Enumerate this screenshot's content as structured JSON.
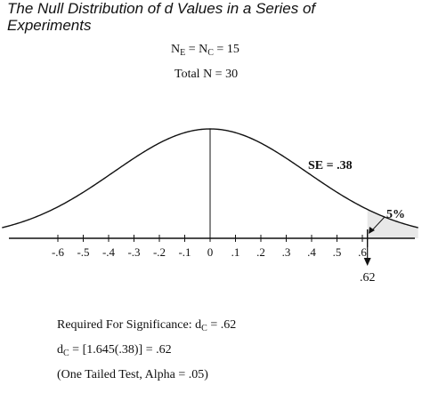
{
  "header": {
    "title_line1": "The Null Distribution of d Values in a Series of",
    "title_line2": "Experiments",
    "sample_eq_prefix": "N",
    "sample_eq_sub1": "E",
    "sample_eq_mid": " = N",
    "sample_eq_sub2": "C",
    "sample_eq_suffix": " = 15",
    "total_n": "Total N = 30"
  },
  "chart_data": {
    "type": "area",
    "title": "The Null Distribution of d Values in a Series of Experiments",
    "distribution": "normal",
    "mean": 0,
    "standard_error": 0.38,
    "x_ticks": [
      -0.6,
      -0.5,
      -0.4,
      -0.3,
      -0.2,
      -0.1,
      0,
      0.1,
      0.2,
      0.3,
      0.4,
      0.5,
      0.6
    ],
    "x_tick_labels": [
      "-.6",
      "-.5",
      "-.4",
      "-.3",
      "-.2",
      "-.1",
      "0",
      ".1",
      ".2",
      ".3",
      ".4",
      ".5",
      ".6"
    ],
    "xlim": [
      -0.82,
      0.82
    ],
    "critical_value": 0.62,
    "critical_value_label": ".62",
    "tail_area_label": "5%",
    "se_label": "SE = .38",
    "grid": false,
    "legend": "none"
  },
  "footer": {
    "required_prefix": "Required For Significance:  d",
    "required_sub": "C",
    "required_suffix": " = .62",
    "formula_prefix": "d",
    "formula_sub": "C",
    "formula_suffix": " = [1.645(.38)] = .62",
    "test_note": "(One Tailed Test, Alpha = .05)"
  }
}
